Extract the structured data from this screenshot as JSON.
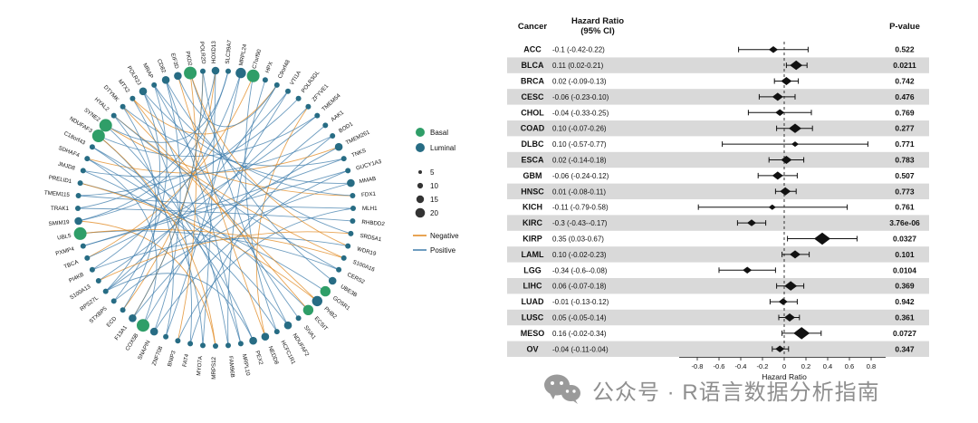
{
  "watermark": {
    "text": "公众号 · R语言数据分析指南"
  },
  "chart_data": [
    {
      "type": "scatter",
      "subtype": "forest-plot",
      "headers": {
        "cancer": "Cancer",
        "hr_line1": "Hazard Ratio",
        "hr_line2": "(95% CI)",
        "p": "P-value"
      },
      "xlabel": "Hazard Ratio",
      "xlim": [
        -0.9,
        0.9
      ],
      "ticks": [
        "-0.8",
        "-0.6",
        "-0.4",
        "-0.2",
        "0",
        "0.2",
        "0.4",
        "0.6",
        "0.8"
      ],
      "zero_line": 0,
      "stripe_color": "#d9d9d9",
      "rows": [
        {
          "cancer": "ACC",
          "label": "-0.1 (-0.42-0.22)",
          "hr": -0.1,
          "lo": -0.42,
          "hi": 0.22,
          "p": "0.522",
          "w": 5
        },
        {
          "cancer": "BLCA",
          "label": "0.11 (0.02-0.21)",
          "hr": 0.11,
          "lo": 0.02,
          "hi": 0.21,
          "p": "0.0211",
          "w": 7
        },
        {
          "cancer": "BRCA",
          "label": "0.02 (-0.09-0.13)",
          "hr": 0.02,
          "lo": -0.09,
          "hi": 0.13,
          "p": "0.742",
          "w": 6
        },
        {
          "cancer": "CESC",
          "label": "-0.06 (-0.23-0.10)",
          "hr": -0.06,
          "lo": -0.23,
          "hi": 0.1,
          "p": "0.476",
          "w": 6
        },
        {
          "cancer": "CHOL",
          "label": "-0.04 (-0.33-0.25)",
          "hr": -0.04,
          "lo": -0.33,
          "hi": 0.25,
          "p": "0.769",
          "w": 5
        },
        {
          "cancer": "COAD",
          "label": "0.10 (-0.07-0.26)",
          "hr": 0.1,
          "lo": -0.07,
          "hi": 0.26,
          "p": "0.277",
          "w": 7
        },
        {
          "cancer": "DLBC",
          "label": "0.10 (-0.57-0.77)",
          "hr": 0.1,
          "lo": -0.57,
          "hi": 0.77,
          "p": "0.771",
          "w": 4
        },
        {
          "cancer": "ESCA",
          "label": "0.02 (-0.14-0.18)",
          "hr": 0.02,
          "lo": -0.14,
          "hi": 0.18,
          "p": "0.783",
          "w": 6
        },
        {
          "cancer": "GBM",
          "label": "-0.06 (-0.24-0.12)",
          "hr": -0.06,
          "lo": -0.24,
          "hi": 0.12,
          "p": "0.507",
          "w": 6
        },
        {
          "cancer": "HNSC",
          "label": "0.01 (-0.08-0.11)",
          "hr": 0.01,
          "lo": -0.08,
          "hi": 0.11,
          "p": "0.773",
          "w": 6
        },
        {
          "cancer": "KICH",
          "label": "-0.11 (-0.79-0.58)",
          "hr": -0.11,
          "lo": -0.79,
          "hi": 0.58,
          "p": "0.761",
          "w": 4
        },
        {
          "cancer": "KIRC",
          "label": "-0.3 (-0.43--0.17)",
          "hr": -0.3,
          "lo": -0.43,
          "hi": -0.17,
          "p": "3.76e-06",
          "w": 5
        },
        {
          "cancer": "KIRP",
          "label": "0.35 (0.03-0.67)",
          "hr": 0.35,
          "lo": 0.03,
          "hi": 0.67,
          "p": "0.0327",
          "w": 9
        },
        {
          "cancer": "LAML",
          "label": "0.10 (-0.02-0.23)",
          "hr": 0.1,
          "lo": -0.02,
          "hi": 0.23,
          "p": "0.101",
          "w": 6
        },
        {
          "cancer": "LGG",
          "label": "-0.34 (-0.6--0.08)",
          "hr": -0.34,
          "lo": -0.6,
          "hi": -0.08,
          "p": "0.0104",
          "w": 5
        },
        {
          "cancer": "LIHC",
          "label": "0.06 (-0.07-0.18)",
          "hr": 0.06,
          "lo": -0.07,
          "hi": 0.18,
          "p": "0.369",
          "w": 7
        },
        {
          "cancer": "LUAD",
          "label": "-0.01 (-0.13-0.12)",
          "hr": -0.01,
          "lo": -0.13,
          "hi": 0.12,
          "p": "0.942",
          "w": 5
        },
        {
          "cancer": "LUSC",
          "label": "0.05 (-0.05-0.14)",
          "hr": 0.05,
          "lo": -0.05,
          "hi": 0.14,
          "p": "0.361",
          "w": 6
        },
        {
          "cancer": "MESO",
          "label": "0.16 (-0.02-0.34)",
          "hr": 0.16,
          "lo": -0.02,
          "hi": 0.34,
          "p": "0.0727",
          "w": 9
        },
        {
          "cancer": "OV",
          "label": "-0.04 (-0.11-0.04)",
          "hr": -0.04,
          "lo": -0.11,
          "hi": 0.04,
          "p": "0.347",
          "w": 5
        }
      ]
    },
    {
      "type": "scatter",
      "subtype": "circular-network",
      "node_groups": [
        {
          "label": "Basal",
          "color": "#2f9e68"
        },
        {
          "label": "Luminal",
          "color": "#276c84"
        }
      ],
      "size_legend": [
        "5",
        "10",
        "15",
        "20"
      ],
      "edge_legend": [
        {
          "label": "Negative",
          "color": "#e0861a"
        },
        {
          "label": "Positive",
          "color": "#3e7cab"
        }
      ],
      "nodes": [
        {
          "n": "HOXD13",
          "g": "L",
          "s": 10
        },
        {
          "n": "SLC39A7",
          "g": "L",
          "s": 5
        },
        {
          "n": "MRPL24",
          "g": "L",
          "s": 15
        },
        {
          "n": "C7orf90",
          "g": "B",
          "s": 20
        },
        {
          "n": "HPX",
          "g": "L",
          "s": 5
        },
        {
          "n": "C9orf48",
          "g": "L",
          "s": 5
        },
        {
          "n": "VTI1A",
          "g": "L",
          "s": 5
        },
        {
          "n": "POLR3GL",
          "g": "L",
          "s": 5
        },
        {
          "n": "ZFYVE1",
          "g": "L",
          "s": 5
        },
        {
          "n": "TMEM54",
          "g": "L",
          "s": 5
        },
        {
          "n": "AAK1",
          "g": "L",
          "s": 5
        },
        {
          "n": "BOD1",
          "g": "L",
          "s": 5
        },
        {
          "n": "TMEM261",
          "g": "L",
          "s": 10
        },
        {
          "n": "TNKS",
          "g": "L",
          "s": 5
        },
        {
          "n": "GUCY1A3",
          "g": "L",
          "s": 5
        },
        {
          "n": "MMAB",
          "g": "L",
          "s": 10
        },
        {
          "n": "FDX1",
          "g": "L",
          "s": 5
        },
        {
          "n": "MLH1",
          "g": "L",
          "s": 5
        },
        {
          "n": "RHBDD2",
          "g": "L",
          "s": 5
        },
        {
          "n": "SRD5A1",
          "g": "L",
          "s": 5
        },
        {
          "n": "WDR19",
          "g": "L",
          "s": 5
        },
        {
          "n": "S100A16",
          "g": "L",
          "s": 5
        },
        {
          "n": "CERS2",
          "g": "L",
          "s": 5
        },
        {
          "n": "UBE3B",
          "g": "L",
          "s": 10
        },
        {
          "n": "GOSR1",
          "g": "B",
          "s": 15
        },
        {
          "n": "PHB2",
          "g": "L",
          "s": 15
        },
        {
          "n": "ECSIT",
          "g": "B",
          "s": 15
        },
        {
          "n": "SIVA1",
          "g": "L",
          "s": 5
        },
        {
          "n": "NDUFAF2",
          "g": "L",
          "s": 10
        },
        {
          "n": "HCFC1R1",
          "g": "L",
          "s": 5
        },
        {
          "n": "NEDD8",
          "g": "L",
          "s": 10
        },
        {
          "n": "PEX2",
          "g": "L",
          "s": 10
        },
        {
          "n": "MRPL10",
          "g": "L",
          "s": 5
        },
        {
          "n": "FAM96B",
          "g": "L",
          "s": 5
        },
        {
          "n": "MRPS12",
          "g": "L",
          "s": 5
        },
        {
          "n": "MYO7A",
          "g": "L",
          "s": 5
        },
        {
          "n": "FAT4",
          "g": "L",
          "s": 5
        },
        {
          "n": "BNIP3",
          "g": "L",
          "s": 5
        },
        {
          "n": "ZNF708",
          "g": "L",
          "s": 5
        },
        {
          "n": "SNAPIN",
          "g": "L",
          "s": 10
        },
        {
          "n": "COX5B",
          "g": "B",
          "s": 20
        },
        {
          "n": "F13A1",
          "g": "L",
          "s": 10
        },
        {
          "n": "ECD",
          "g": "L",
          "s": 5
        },
        {
          "n": "STXBP5",
          "g": "L",
          "s": 5
        },
        {
          "n": "RPS27L",
          "g": "L",
          "s": 5
        },
        {
          "n": "S100A13",
          "g": "L",
          "s": 5
        },
        {
          "n": "PI4KB",
          "g": "L",
          "s": 5
        },
        {
          "n": "TBCA",
          "g": "L",
          "s": 5
        },
        {
          "n": "PXMP4",
          "g": "L",
          "s": 5
        },
        {
          "n": "UBL5",
          "g": "B",
          "s": 20
        },
        {
          "n": "SMIM19",
          "g": "L",
          "s": 10
        },
        {
          "n": "TRAK1",
          "g": "L",
          "s": 5
        },
        {
          "n": "TMEM115",
          "g": "L",
          "s": 5
        },
        {
          "n": "PRELID1",
          "g": "L",
          "s": 5
        },
        {
          "n": "JMJD8",
          "g": "L",
          "s": 5
        },
        {
          "n": "SDHAF4",
          "g": "L",
          "s": 5
        },
        {
          "n": "C18orf43",
          "g": "L",
          "s": 5
        },
        {
          "n": "NDUFAF3",
          "g": "B",
          "s": 20
        },
        {
          "n": "SYNE2",
          "g": "B",
          "s": 20
        },
        {
          "n": "HYAL2",
          "g": "L",
          "s": 5
        },
        {
          "n": "DTYMK",
          "g": "L",
          "s": 5
        },
        {
          "n": "MTX2",
          "g": "L",
          "s": 5
        },
        {
          "n": "POLR2J",
          "g": "L",
          "s": 10
        },
        {
          "n": "MRAP",
          "g": "L",
          "s": 5
        },
        {
          "n": "CD82",
          "g": "L",
          "s": 10
        },
        {
          "n": "EIF3D",
          "g": "L",
          "s": 10
        },
        {
          "n": "PKD2",
          "g": "B",
          "s": 20
        },
        {
          "n": "POLR2D",
          "g": "L",
          "s": 5
        }
      ],
      "edges": [
        [
          0,
          35,
          "p"
        ],
        [
          0,
          42,
          "n"
        ],
        [
          1,
          50,
          "p"
        ],
        [
          2,
          38,
          "p"
        ],
        [
          3,
          47,
          "n"
        ],
        [
          3,
          29,
          "p"
        ],
        [
          4,
          33,
          "p"
        ],
        [
          5,
          44,
          "p"
        ],
        [
          5,
          61,
          "n"
        ],
        [
          6,
          40,
          "p"
        ],
        [
          7,
          52,
          "p"
        ],
        [
          8,
          45,
          "p"
        ],
        [
          8,
          30,
          "n"
        ],
        [
          9,
          57,
          "p"
        ],
        [
          10,
          41,
          "p"
        ],
        [
          11,
          36,
          "p"
        ],
        [
          12,
          55,
          "n"
        ],
        [
          13,
          48,
          "p"
        ],
        [
          14,
          39,
          "p"
        ],
        [
          15,
          43,
          "p"
        ],
        [
          15,
          62,
          "p"
        ],
        [
          16,
          58,
          "n"
        ],
        [
          17,
          37,
          "p"
        ],
        [
          18,
          51,
          "p"
        ],
        [
          19,
          64,
          "p"
        ],
        [
          20,
          46,
          "p"
        ],
        [
          21,
          59,
          "n"
        ],
        [
          22,
          49,
          "p"
        ],
        [
          23,
          66,
          "p"
        ],
        [
          24,
          53,
          "p"
        ],
        [
          25,
          60,
          "n"
        ],
        [
          26,
          56,
          "p"
        ],
        [
          27,
          63,
          "p"
        ],
        [
          28,
          67,
          "p"
        ],
        [
          29,
          54,
          "p"
        ],
        [
          30,
          65,
          "n"
        ],
        [
          31,
          44,
          "p"
        ],
        [
          32,
          58,
          "p"
        ],
        [
          33,
          62,
          "p"
        ],
        [
          34,
          50,
          "n"
        ],
        [
          35,
          57,
          "p"
        ],
        [
          36,
          61,
          "p"
        ],
        [
          37,
          66,
          "n"
        ],
        [
          38,
          59,
          "p"
        ],
        [
          39,
          64,
          "p"
        ],
        [
          40,
          55,
          "p"
        ],
        [
          41,
          67,
          "n"
        ],
        [
          42,
          60,
          "p"
        ],
        [
          43,
          63,
          "p"
        ],
        [
          44,
          12,
          "p"
        ],
        [
          45,
          19,
          "n"
        ],
        [
          46,
          2,
          "p"
        ],
        [
          47,
          9,
          "p"
        ],
        [
          48,
          14,
          "p"
        ],
        [
          49,
          21,
          "n"
        ],
        [
          50,
          6,
          "p"
        ],
        [
          51,
          0,
          "p"
        ],
        [
          52,
          17,
          "p"
        ],
        [
          53,
          25,
          "n"
        ],
        [
          54,
          11,
          "p"
        ],
        [
          55,
          28,
          "p"
        ],
        [
          56,
          31,
          "p"
        ],
        [
          57,
          34,
          "n"
        ],
        [
          58,
          1,
          "p"
        ],
        [
          59,
          22,
          "p"
        ],
        [
          60,
          13,
          "p"
        ],
        [
          61,
          26,
          "n"
        ],
        [
          62,
          44,
          "p"
        ],
        [
          63,
          16,
          "p"
        ],
        [
          64,
          32,
          "p"
        ],
        [
          65,
          5,
          "p"
        ],
        [
          66,
          20,
          "n"
        ],
        [
          67,
          41,
          "p"
        ]
      ]
    }
  ]
}
